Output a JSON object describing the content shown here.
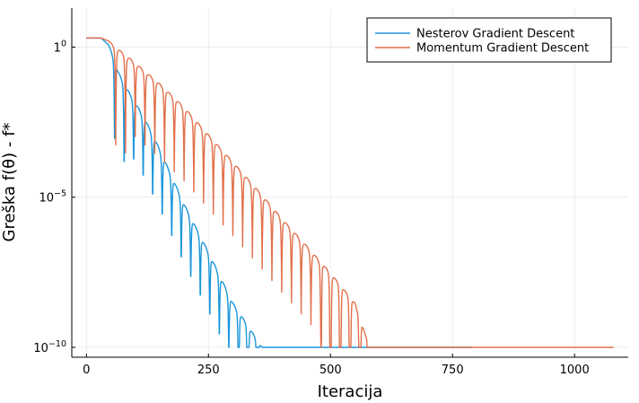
{
  "chart_data": {
    "type": "line",
    "title": "",
    "xlabel": "Iteracija",
    "ylabel": "Greška f(θ) - f*",
    "y_scale": "log10",
    "xlim": [
      -30,
      1110
    ],
    "ylim": [
      1e-10,
      10
    ],
    "x_ticks": [
      0,
      250,
      500,
      750,
      1000
    ],
    "x_tick_labels": [
      "0",
      "250",
      "500",
      "750",
      "1000"
    ],
    "y_ticks": [
      1e-10,
      1e-05,
      1
    ],
    "y_tick_labels": [
      {
        "base": "10",
        "exp": "−10"
      },
      {
        "base": "10",
        "exp": "−5"
      },
      {
        "base": "1",
        "exp": "0"
      }
    ],
    "grid": true,
    "legend_position": "top-right",
    "series": [
      {
        "name": "Nesterov Gradient Descent",
        "color": "#1a96dc",
        "data_end": 790,
        "floor": 1e-10,
        "envelope": [
          [
            0,
            2
          ],
          [
            12,
            2
          ],
          [
            30,
            2
          ],
          [
            45,
            1.2
          ],
          [
            55,
            0.5
          ],
          [
            65,
            0.15
          ],
          [
            80,
            0.05
          ],
          [
            120,
            0.004
          ],
          [
            150,
            0.0004
          ],
          [
            200,
            6e-06
          ],
          [
            250,
            1.5e-07
          ],
          [
            300,
            3e-09
          ],
          [
            360,
            1e-10
          ]
        ],
        "oscillation_period": 19.5,
        "oscillation_start": 48,
        "dips_to_floor_after": 310,
        "floor_from": 395
      },
      {
        "name": "Momentum Gradient Descent",
        "color": "#e2704b",
        "data_end": 1080,
        "floor": 1e-10,
        "envelope": [
          [
            0,
            2
          ],
          [
            12,
            2
          ],
          [
            30,
            2
          ],
          [
            45,
            1.6
          ],
          [
            60,
            1.0
          ],
          [
            100,
            0.3
          ],
          [
            150,
            0.06
          ],
          [
            200,
            0.01
          ],
          [
            250,
            0.0012
          ],
          [
            300,
            0.00015
          ],
          [
            350,
            1.8e-05
          ],
          [
            400,
            2e-06
          ],
          [
            450,
            2.5e-07
          ],
          [
            500,
            3e-08
          ],
          [
            550,
            3e-09
          ],
          [
            580,
            1e-10
          ]
        ],
        "oscillation_period": 20,
        "oscillation_start": 50,
        "dips_to_floor_after": 480,
        "floor_from": 575
      }
    ]
  }
}
